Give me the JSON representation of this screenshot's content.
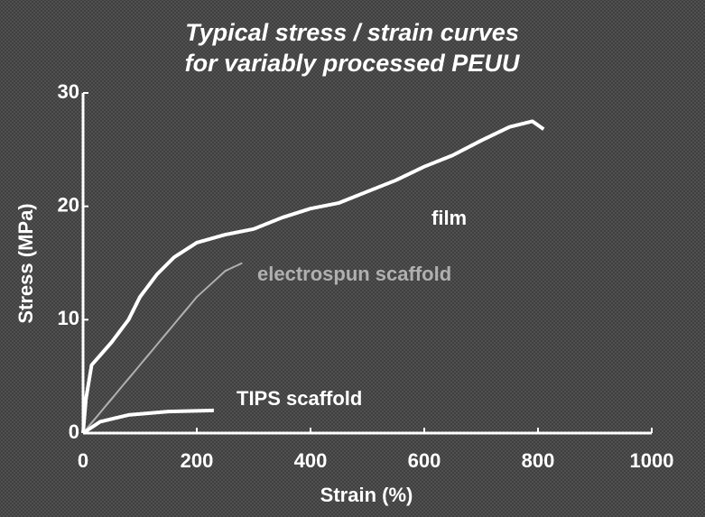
{
  "chart_data": {
    "type": "line",
    "title": [
      "Typical stress / strain curves",
      "for variably processed PEUU"
    ],
    "x_label": "Strain (%)",
    "y_label": "Stress (MPa)",
    "xlim": [
      0,
      1000
    ],
    "xticks": [
      0,
      200,
      400,
      600,
      800,
      1000
    ],
    "ylim": [
      0,
      30
    ],
    "yticks": [
      0,
      10,
      20,
      30
    ],
    "series": [
      {
        "name": "film",
        "color": "#ffffff",
        "x": [
          0,
          5,
          15,
          50,
          80,
          100,
          130,
          160,
          200,
          250,
          300,
          350,
          400,
          450,
          500,
          550,
          600,
          650,
          700,
          750,
          790,
          810
        ],
        "values": [
          0,
          3,
          6,
          8,
          10,
          12,
          14,
          15.5,
          16.8,
          17.5,
          18,
          19,
          19.8,
          20.3,
          21.3,
          22.3,
          23.5,
          24.5,
          25.8,
          27,
          27.5,
          26.8
        ]
      },
      {
        "name": "electrospun scaffold",
        "color": "#b0b0b0",
        "x": [
          0,
          50,
          100,
          150,
          200,
          250,
          280
        ],
        "values": [
          0,
          3,
          6,
          9,
          12,
          14.3,
          15
        ]
      },
      {
        "name": "TIPS scaffold",
        "color": "#ffffff",
        "x": [
          0,
          30,
          80,
          150,
          230
        ],
        "values": [
          0,
          1,
          1.6,
          1.9,
          2
        ]
      }
    ]
  }
}
